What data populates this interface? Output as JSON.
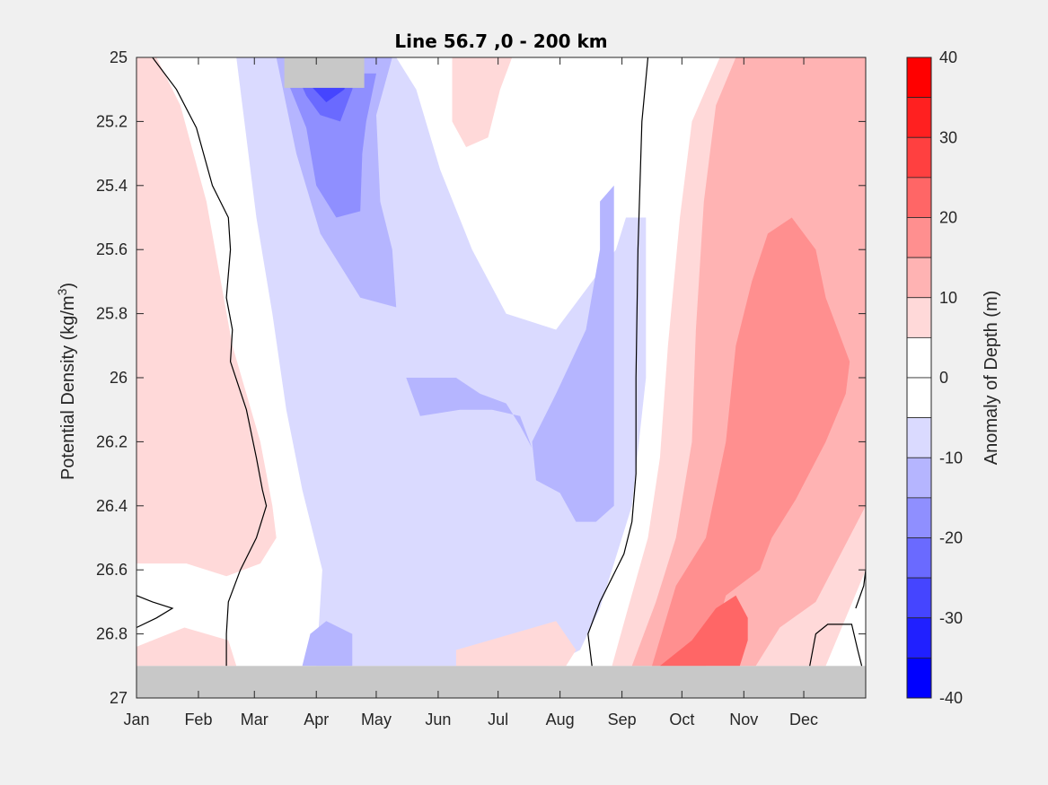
{
  "chart_data": {
    "type": "heatmap",
    "subtype": "filled-contour",
    "title": "Line 56.7 ,0 - 200 km",
    "xlabel": "",
    "ylabel_main": "Potential Density (kg/m",
    "ylabel_sup": "3",
    "ylabel_close": ")",
    "colorbar_label": "Anomaly of Depth (m)",
    "x_categories": [
      "Jan",
      "Feb",
      "Mar",
      "Apr",
      "May",
      "Jun",
      "Jul",
      "Aug",
      "Sep",
      "Oct",
      "Nov",
      "Dec"
    ],
    "x_range_days": [
      0,
      365
    ],
    "ylim": [
      25,
      27
    ],
    "y_reversed": true,
    "y_ticks": [
      "25",
      "25.2",
      "25.4",
      "25.6",
      "25.8",
      "26",
      "26.2",
      "26.4",
      "26.6",
      "26.8",
      "27"
    ],
    "y_tick_values": [
      25,
      25.2,
      25.4,
      25.6,
      25.8,
      26,
      26.2,
      26.4,
      26.6,
      26.8,
      27
    ],
    "colorbar_ticks": [
      "40",
      "30",
      "20",
      "10",
      "0",
      "-10",
      "-20",
      "-30",
      "-40"
    ],
    "colorbar_tick_values": [
      40,
      30,
      20,
      10,
      0,
      -10,
      -20,
      -30,
      -40
    ],
    "levels": [
      {
        "min": 35,
        "max": 40,
        "color": "#ff0000"
      },
      {
        "min": 30,
        "max": 35,
        "color": "#ff2020"
      },
      {
        "min": 25,
        "max": 30,
        "color": "#ff4040"
      },
      {
        "min": 20,
        "max": 25,
        "color": "#ff6666"
      },
      {
        "min": 15,
        "max": 20,
        "color": "#ff8f8f"
      },
      {
        "min": 10,
        "max": 15,
        "color": "#ffb3b3"
      },
      {
        "min": 5,
        "max": 10,
        "color": "#ffd9d9"
      },
      {
        "min": 0,
        "max": 5,
        "color": "#ffffff"
      },
      {
        "min": -5,
        "max": 0,
        "color": "#ffffff"
      },
      {
        "min": -10,
        "max": -5,
        "color": "#dadaff"
      },
      {
        "min": -15,
        "max": -10,
        "color": "#b5b5ff"
      },
      {
        "min": -20,
        "max": -15,
        "color": "#8f8fff"
      },
      {
        "min": -25,
        "max": -20,
        "color": "#6a6aff"
      },
      {
        "min": -30,
        "max": -25,
        "color": "#4545ff"
      },
      {
        "min": -35,
        "max": -30,
        "color": "#2020ff"
      },
      {
        "min": -40,
        "max": -35,
        "color": "#0000ff"
      }
    ],
    "missing_data_color": "#c8c8c8",
    "missing_regions": [
      {
        "x0": 0,
        "x1": 365,
        "y0": 26.9,
        "y1": 27
      },
      {
        "x0": 74,
        "x1": 114,
        "y0": 25,
        "y1": 25.095
      }
    ],
    "regions": [
      {
        "level": 10,
        "points": [
          [
            0,
            25.15
          ],
          [
            18,
            25.35
          ],
          [
            28,
            25.55
          ],
          [
            37,
            25.9
          ],
          [
            51,
            26.25
          ],
          [
            53,
            26.35
          ],
          [
            44,
            26.44
          ],
          [
            30,
            26.46
          ],
          [
            12,
            26.44
          ],
          [
            0,
            26.38
          ]
        ]
      },
      {
        "level": 5,
        "points": [
          [
            0,
            25.0
          ],
          [
            10,
            25.0
          ],
          [
            22,
            25.15
          ],
          [
            35,
            25.45
          ],
          [
            48,
            25.9
          ],
          [
            62,
            26.2
          ],
          [
            68,
            26.4
          ],
          [
            70,
            26.5
          ],
          [
            62,
            26.58
          ],
          [
            45,
            26.62
          ],
          [
            25,
            26.58
          ],
          [
            0,
            26.58
          ]
        ]
      },
      {
        "level": 5,
        "points": [
          [
            0,
            26.84
          ],
          [
            24,
            26.78
          ],
          [
            46,
            26.82
          ],
          [
            50,
            26.9
          ],
          [
            0,
            26.9
          ]
        ]
      },
      {
        "level": -5,
        "points": [
          [
            25,
            25.0
          ],
          [
            135,
            25.0
          ],
          [
            152,
            25.1
          ],
          [
            160,
            25.2
          ],
          [
            180,
            25.35
          ],
          [
            205,
            25.35
          ],
          [
            235,
            25.35
          ],
          [
            255,
            25.38
          ],
          [
            258,
            26.0
          ],
          [
            250,
            26.45
          ],
          [
            238,
            26.78
          ],
          [
            230,
            26.9
          ],
          [
            75,
            26.9
          ],
          [
            80,
            26.6
          ],
          [
            74,
            26.4
          ],
          [
            66,
            26.25
          ],
          [
            62,
            26.0
          ],
          [
            55,
            25.75
          ],
          [
            48,
            25.5
          ],
          [
            38,
            25.25
          ]
        ]
      },
      {
        "level": 5,
        "points": [
          [
            158,
            25.0
          ],
          [
            188,
            25.0
          ],
          [
            182,
            25.1
          ],
          [
            176,
            25.25
          ],
          [
            165,
            25.28
          ],
          [
            158,
            25.2
          ]
        ]
      },
      {
        "level": -10,
        "points": [
          [
            50,
            25.0
          ],
          [
            130,
            25.0
          ],
          [
            140,
            25.1
          ],
          [
            152,
            25.35
          ],
          [
            168,
            25.6
          ],
          [
            185,
            25.8
          ],
          [
            210,
            25.85
          ],
          [
            240,
            25.6
          ],
          [
            245,
            25.5
          ],
          [
            255,
            25.5
          ],
          [
            255,
            26.0
          ],
          [
            248,
            26.4
          ],
          [
            232,
            26.72
          ],
          [
            222,
            26.85
          ],
          [
            206,
            26.9
          ],
          [
            90,
            26.9
          ],
          [
            93,
            26.6
          ],
          [
            83,
            26.35
          ],
          [
            75,
            26.1
          ],
          [
            68,
            25.8
          ],
          [
            60,
            25.5
          ]
        ]
      },
      {
        "level": 5,
        "points": [
          [
            160,
            26.85
          ],
          [
            210,
            26.76
          ],
          [
            220,
            26.85
          ],
          [
            215,
            26.9
          ],
          [
            160,
            26.9
          ]
        ]
      },
      {
        "level": -15,
        "points": [
          [
            198,
            26.2
          ],
          [
            210,
            26.05
          ],
          [
            225,
            25.85
          ],
          [
            232,
            25.6
          ],
          [
            232,
            25.45
          ],
          [
            239,
            25.4
          ],
          [
            239,
            26.4
          ],
          [
            230,
            26.45
          ],
          [
            220,
            26.45
          ],
          [
            212,
            26.36
          ],
          [
            200,
            26.32
          ]
        ]
      },
      {
        "level": -15,
        "points": [
          [
            135,
            26.0
          ],
          [
            160,
            26.0
          ],
          [
            172,
            26.05
          ],
          [
            185,
            26.08
          ],
          [
            192,
            26.15
          ],
          [
            198,
            26.22
          ],
          [
            192,
            26.12
          ],
          [
            178,
            26.1
          ],
          [
            162,
            26.1
          ],
          [
            142,
            26.12
          ]
        ]
      },
      {
        "level": -15,
        "points": [
          [
            83,
            26.9
          ],
          [
            87,
            26.8
          ],
          [
            95,
            26.76
          ],
          [
            108,
            26.8
          ],
          [
            108,
            26.9
          ]
        ]
      },
      {
        "level": -15,
        "points": [
          [
            70,
            25.0
          ],
          [
            128,
            25.0
          ],
          [
            120,
            25.18
          ],
          [
            122,
            25.45
          ],
          [
            128,
            25.6
          ],
          [
            130,
            25.78
          ],
          [
            112,
            25.75
          ],
          [
            92,
            25.55
          ],
          [
            80,
            25.3
          ],
          [
            74,
            25.12
          ]
        ]
      },
      {
        "level": -20,
        "points": [
          [
            74,
            25.05
          ],
          [
            120,
            25.05
          ],
          [
            115,
            25.2
          ],
          [
            113,
            25.3
          ],
          [
            112,
            25.48
          ],
          [
            100,
            25.5
          ],
          [
            90,
            25.4
          ],
          [
            85,
            25.22
          ]
        ]
      },
      {
        "level": -25,
        "points": [
          [
            78,
            25.02
          ],
          [
            110,
            25.0
          ],
          [
            108,
            25.1
          ],
          [
            102,
            25.2
          ],
          [
            92,
            25.18
          ],
          [
            85,
            25.12
          ]
        ]
      },
      {
        "level": -30,
        "points": [
          [
            80,
            25.0
          ],
          [
            108,
            25.0
          ],
          [
            104,
            25.1
          ],
          [
            95,
            25.14
          ],
          [
            86,
            25.08
          ]
        ]
      },
      {
        "level": 5,
        "points": [
          [
            292,
            25.0
          ],
          [
            365,
            25.0
          ],
          [
            365,
            26.6
          ],
          [
            355,
            26.75
          ],
          [
            345,
            26.9
          ],
          [
            238,
            26.9
          ],
          [
            246,
            26.72
          ],
          [
            256,
            26.5
          ],
          [
            262,
            26.25
          ],
          [
            266,
            25.9
          ],
          [
            272,
            25.5
          ],
          [
            278,
            25.2
          ]
        ]
      },
      {
        "level": 10,
        "points": [
          [
            300,
            25.0
          ],
          [
            365,
            25.0
          ],
          [
            365,
            26.4
          ],
          [
            350,
            26.58
          ],
          [
            340,
            26.7
          ],
          [
            322,
            26.78
          ],
          [
            310,
            26.9
          ],
          [
            248,
            26.9
          ],
          [
            260,
            26.7
          ],
          [
            270,
            26.5
          ],
          [
            278,
            26.2
          ],
          [
            280,
            25.85
          ],
          [
            284,
            25.45
          ],
          [
            290,
            25.15
          ]
        ]
      },
      {
        "level": 15,
        "points": [
          [
            316,
            25.55
          ],
          [
            328,
            25.5
          ],
          [
            340,
            25.6
          ],
          [
            345,
            25.75
          ],
          [
            357,
            25.95
          ],
          [
            355,
            26.05
          ],
          [
            345,
            26.2
          ],
          [
            330,
            26.38
          ],
          [
            318,
            26.5
          ],
          [
            312,
            26.6
          ],
          [
            295,
            26.68
          ],
          [
            285,
            26.9
          ],
          [
            258,
            26.9
          ],
          [
            270,
            26.65
          ],
          [
            285,
            26.5
          ],
          [
            295,
            26.2
          ],
          [
            300,
            25.9
          ],
          [
            308,
            25.7
          ]
        ]
      },
      {
        "level": 20,
        "points": [
          [
            290,
            26.72
          ],
          [
            300,
            26.68
          ],
          [
            306,
            26.75
          ],
          [
            306,
            26.82
          ],
          [
            302,
            26.9
          ],
          [
            262,
            26.9
          ],
          [
            278,
            26.82
          ]
        ]
      }
    ],
    "contour_lines": [
      {
        "value": 0,
        "points": [
          [
            8,
            25.0
          ],
          [
            20,
            25.1
          ],
          [
            30,
            25.22
          ],
          [
            38,
            25.4
          ],
          [
            46,
            25.5
          ],
          [
            47,
            25.6
          ],
          [
            45,
            25.75
          ],
          [
            48,
            25.85
          ],
          [
            47,
            25.95
          ],
          [
            55,
            26.1
          ],
          [
            60,
            26.25
          ],
          [
            63,
            26.35
          ],
          [
            65,
            26.4
          ],
          [
            60,
            26.5
          ],
          [
            52,
            26.6
          ],
          [
            46,
            26.7
          ],
          [
            45,
            26.8
          ],
          [
            45,
            26.9
          ]
        ]
      },
      {
        "value": 0,
        "points": [
          [
            0,
            26.68
          ],
          [
            8,
            26.7
          ],
          [
            18,
            26.72
          ],
          [
            10,
            26.75
          ],
          [
            0,
            26.78
          ]
        ]
      },
      {
        "value": 0,
        "points": [
          [
            256,
            25.0
          ],
          [
            253,
            25.2
          ],
          [
            251,
            25.6
          ],
          [
            250,
            26.0
          ],
          [
            250,
            26.3
          ],
          [
            248,
            26.45
          ],
          [
            244,
            26.55
          ],
          [
            232,
            26.7
          ],
          [
            226,
            26.8
          ],
          [
            228,
            26.9
          ]
        ]
      },
      {
        "value": 0,
        "points": [
          [
            360,
            26.72
          ],
          [
            364,
            26.65
          ],
          [
            365,
            26.6
          ]
        ]
      },
      {
        "value": 0,
        "points": [
          [
            337,
            26.9
          ],
          [
            340,
            26.8
          ],
          [
            346,
            26.77
          ],
          [
            358,
            26.77
          ],
          [
            361,
            26.85
          ],
          [
            363,
            26.9
          ]
        ]
      }
    ]
  }
}
